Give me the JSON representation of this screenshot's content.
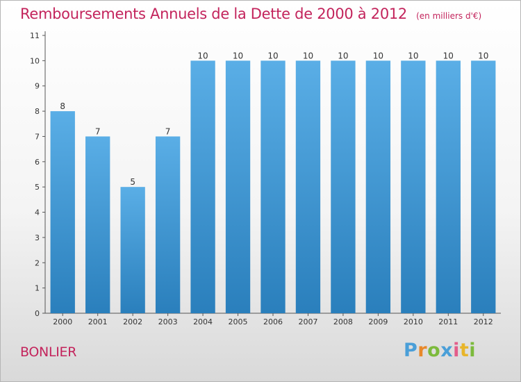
{
  "title": "Remboursements Annuels de la Dette de 2000 à 2012",
  "unit": "(en milliers d'€)",
  "place": "BONLIER",
  "logo": "Proxiti",
  "colors": {
    "bar_light": "#5aaee6",
    "bar_dark": "#2a7fbc",
    "title": "#c3245c"
  },
  "chart_data": {
    "type": "bar",
    "title": "Remboursements Annuels de la Dette de 2000 à 2012",
    "categories": [
      "2000",
      "2001",
      "2002",
      "2003",
      "2004",
      "2005",
      "2006",
      "2007",
      "2008",
      "2009",
      "2010",
      "2011",
      "2012"
    ],
    "values": [
      8,
      7,
      5,
      7,
      10,
      10,
      10,
      10,
      10,
      10,
      10,
      10,
      10
    ],
    "ylim": [
      0,
      11
    ],
    "yticks": [
      0,
      1,
      2,
      3,
      4,
      5,
      6,
      7,
      8,
      9,
      10,
      11
    ],
    "grid": false,
    "data_labels": true
  }
}
